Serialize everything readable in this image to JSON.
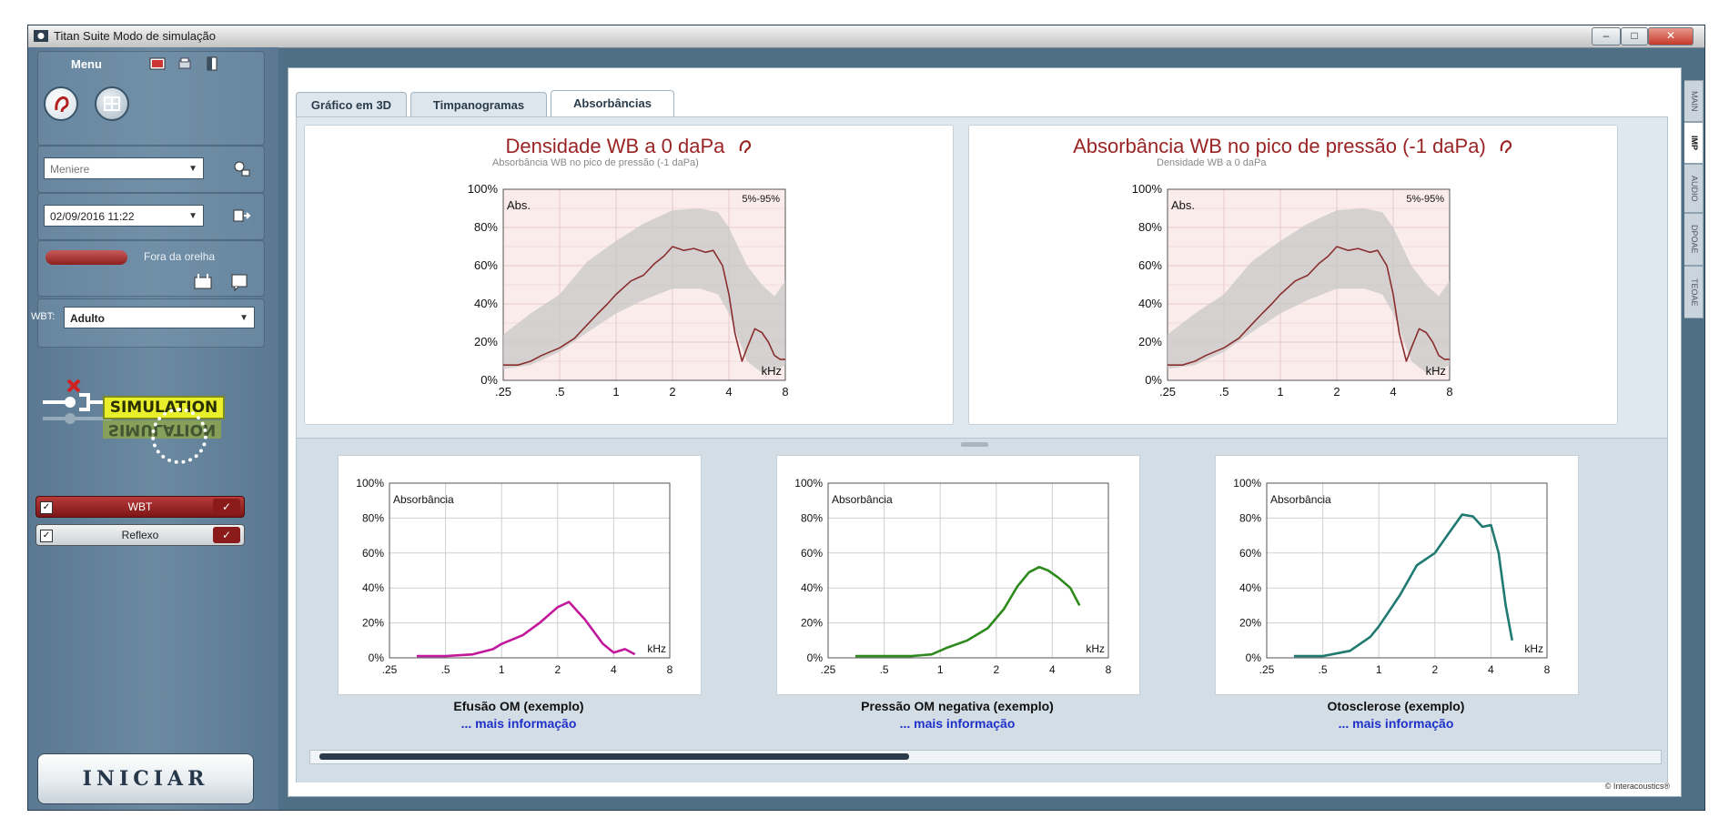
{
  "window": {
    "title": "Titan Suite Modo de simulação",
    "controls": {
      "minimize": "–",
      "maximize": "□",
      "close": "✕"
    }
  },
  "left_panel": {
    "menu_label": "Menu",
    "protocol_select": "Meniere",
    "session_select": "02/09/2016 11:22",
    "probe_status": "Fora da orelha",
    "wbt_type_label": "WBT:",
    "wbt_type_value": "Adulto",
    "simulation_label": "SIMULATION",
    "tests": [
      {
        "label": "WBT",
        "checked": true
      },
      {
        "label": "Reflexo",
        "checked": true
      }
    ],
    "start_button": "INICIAR"
  },
  "tabs": [
    {
      "label": "Gráfico em 3D",
      "active": false
    },
    {
      "label": "Timpanogramas",
      "active": false
    },
    {
      "label": "Absorbâncias",
      "active": true
    }
  ],
  "right_tabs": [
    "MAIN",
    "IMP",
    "AUDIO",
    "DPOAE",
    "TEOAE"
  ],
  "right_tabs_active": "IMP",
  "brand": "© Interacoustics®",
  "colors": {
    "title_red": "#9a2424",
    "measured_curve": "#8a2e2e",
    "norm_band": "#c8c8c8",
    "effusion": "#c2189b",
    "negative_pressure": "#2e8a1c",
    "otosclerosis": "#1f7a72",
    "link_blue": "#1f31c9"
  },
  "chart_data": [
    {
      "type": "area",
      "title": "Densidade WB a 0 daPa",
      "subtitle": "Absorbância WB no pico de pressão (-1 daPa)",
      "ylabel": "Abs.",
      "xlabel": "kHz",
      "legend": "5%-95%",
      "x_ticks": [
        ".25",
        ".5",
        "1",
        "2",
        "4",
        "8"
      ],
      "y_ticks": [
        "0%",
        "20%",
        "40%",
        "60%",
        "80%",
        "100%"
      ],
      "x_scale": "log2",
      "xlim": [
        0.25,
        8
      ],
      "ylim": [
        0,
        100
      ],
      "grid": true,
      "series": [
        {
          "kind": "band",
          "x": [
            0.25,
            0.35,
            0.5,
            0.7,
            1.0,
            1.4,
            2.0,
            2.8,
            3.5,
            4.0,
            5.0,
            6.0,
            7.0,
            8.0
          ],
          "low": [
            6,
            8,
            15,
            25,
            35,
            42,
            48,
            48,
            45,
            35,
            10,
            4,
            5,
            8
          ],
          "high": [
            24,
            35,
            45,
            62,
            73,
            82,
            89,
            90,
            88,
            80,
            60,
            50,
            44,
            52
          ]
        },
        {
          "kind": "line",
          "x": [
            0.25,
            0.3,
            0.35,
            0.4,
            0.5,
            0.6,
            0.7,
            0.8,
            0.9,
            1.0,
            1.2,
            1.4,
            1.6,
            1.8,
            2.0,
            2.3,
            2.6,
            3.0,
            3.3,
            3.7,
            4.0,
            4.3,
            4.7,
            5.0,
            5.5,
            6.0,
            6.5,
            7.0,
            7.5,
            8.0
          ],
          "y": [
            8,
            8,
            10,
            13,
            17,
            22,
            29,
            35,
            40,
            45,
            52,
            55,
            61,
            65,
            70,
            68,
            69,
            67,
            68,
            60,
            45,
            25,
            10,
            17,
            27,
            25,
            20,
            13,
            11,
            11
          ]
        }
      ]
    },
    {
      "type": "area",
      "title": "Absorbância WB no pico de pressão (-1 daPa)",
      "subtitle": "Densidade WB a 0 daPa",
      "ylabel": "Abs.",
      "xlabel": "kHz",
      "legend": "5%-95%",
      "x_ticks": [
        ".25",
        ".5",
        "1",
        "2",
        "4",
        "8"
      ],
      "y_ticks": [
        "0%",
        "20%",
        "40%",
        "60%",
        "80%",
        "100%"
      ],
      "x_scale": "log2",
      "xlim": [
        0.25,
        8
      ],
      "ylim": [
        0,
        100
      ],
      "grid": true,
      "series": [
        {
          "kind": "band",
          "x": [
            0.25,
            0.35,
            0.5,
            0.7,
            1.0,
            1.4,
            2.0,
            2.8,
            3.5,
            4.0,
            5.0,
            6.0,
            7.0,
            8.0
          ],
          "low": [
            6,
            8,
            15,
            25,
            35,
            42,
            48,
            48,
            45,
            35,
            10,
            4,
            5,
            8
          ],
          "high": [
            24,
            35,
            45,
            62,
            73,
            82,
            89,
            90,
            88,
            80,
            60,
            50,
            44,
            52
          ]
        },
        {
          "kind": "line",
          "x": [
            0.25,
            0.3,
            0.35,
            0.4,
            0.5,
            0.6,
            0.7,
            0.8,
            0.9,
            1.0,
            1.2,
            1.4,
            1.6,
            1.8,
            2.0,
            2.3,
            2.6,
            3.0,
            3.3,
            3.7,
            4.0,
            4.3,
            4.7,
            5.0,
            5.5,
            6.0,
            6.5,
            7.0,
            7.5,
            8.0
          ],
          "y": [
            8,
            8,
            10,
            13,
            17,
            22,
            29,
            35,
            40,
            45,
            52,
            55,
            61,
            65,
            70,
            68,
            69,
            67,
            68,
            60,
            45,
            25,
            10,
            17,
            27,
            25,
            20,
            13,
            11,
            11
          ]
        }
      ]
    },
    {
      "type": "line",
      "title": "Efusão OM (exemplo)",
      "link": "... mais informação",
      "ylabel": "Absorbância",
      "xlabel": "kHz",
      "x_ticks": [
        ".25",
        ".5",
        "1",
        "2",
        "4",
        "8"
      ],
      "y_ticks": [
        "0%",
        "20%",
        "40%",
        "60%",
        "80%",
        "100%"
      ],
      "x_scale": "log2",
      "xlim": [
        0.25,
        8
      ],
      "ylim": [
        0,
        100
      ],
      "grid": true,
      "color": "#c2189b",
      "series": [
        {
          "kind": "line",
          "x": [
            0.35,
            0.5,
            0.7,
            0.9,
            1.0,
            1.3,
            1.6,
            2.0,
            2.3,
            2.8,
            3.5,
            4.0,
            4.6,
            5.2
          ],
          "y": [
            1,
            1,
            2,
            5,
            8,
            13,
            20,
            29,
            32,
            22,
            8,
            3,
            5,
            2
          ]
        }
      ]
    },
    {
      "type": "line",
      "title": "Pressão OM negativa (exemplo)",
      "link": "... mais informação",
      "ylabel": "Absorbância",
      "xlabel": "kHz",
      "x_ticks": [
        ".25",
        ".5",
        "1",
        "2",
        "4",
        "8"
      ],
      "y_ticks": [
        "0%",
        "20%",
        "40%",
        "60%",
        "80%",
        "100%"
      ],
      "x_scale": "log2",
      "xlim": [
        0.25,
        8
      ],
      "ylim": [
        0,
        100
      ],
      "grid": true,
      "color": "#2e8a1c",
      "series": [
        {
          "kind": "line",
          "x": [
            0.35,
            0.5,
            0.7,
            0.9,
            1.1,
            1.4,
            1.8,
            2.2,
            2.6,
            3.0,
            3.4,
            3.8,
            4.3,
            5.0,
            5.6
          ],
          "y": [
            1,
            1,
            1,
            2,
            6,
            10,
            17,
            28,
            41,
            49,
            52,
            50,
            46,
            40,
            30
          ]
        }
      ]
    },
    {
      "type": "line",
      "title": "Otosclerose (exemplo)",
      "link": "... mais informação",
      "ylabel": "Absorbância",
      "xlabel": "kHz",
      "x_ticks": [
        ".25",
        ".5",
        "1",
        "2",
        "4",
        "8"
      ],
      "y_ticks": [
        "0%",
        "20%",
        "40%",
        "60%",
        "80%",
        "100%"
      ],
      "x_scale": "log2",
      "xlim": [
        0.25,
        8
      ],
      "ylim": [
        0,
        100
      ],
      "grid": true,
      "color": "#1f7a72",
      "series": [
        {
          "kind": "line",
          "x": [
            0.35,
            0.5,
            0.7,
            0.9,
            1.0,
            1.3,
            1.6,
            2.0,
            2.4,
            2.8,
            3.2,
            3.6,
            4.0,
            4.4,
            4.8,
            5.2
          ],
          "y": [
            1,
            1,
            4,
            12,
            18,
            36,
            53,
            60,
            72,
            82,
            81,
            75,
            76,
            60,
            30,
            10
          ]
        }
      ]
    }
  ]
}
